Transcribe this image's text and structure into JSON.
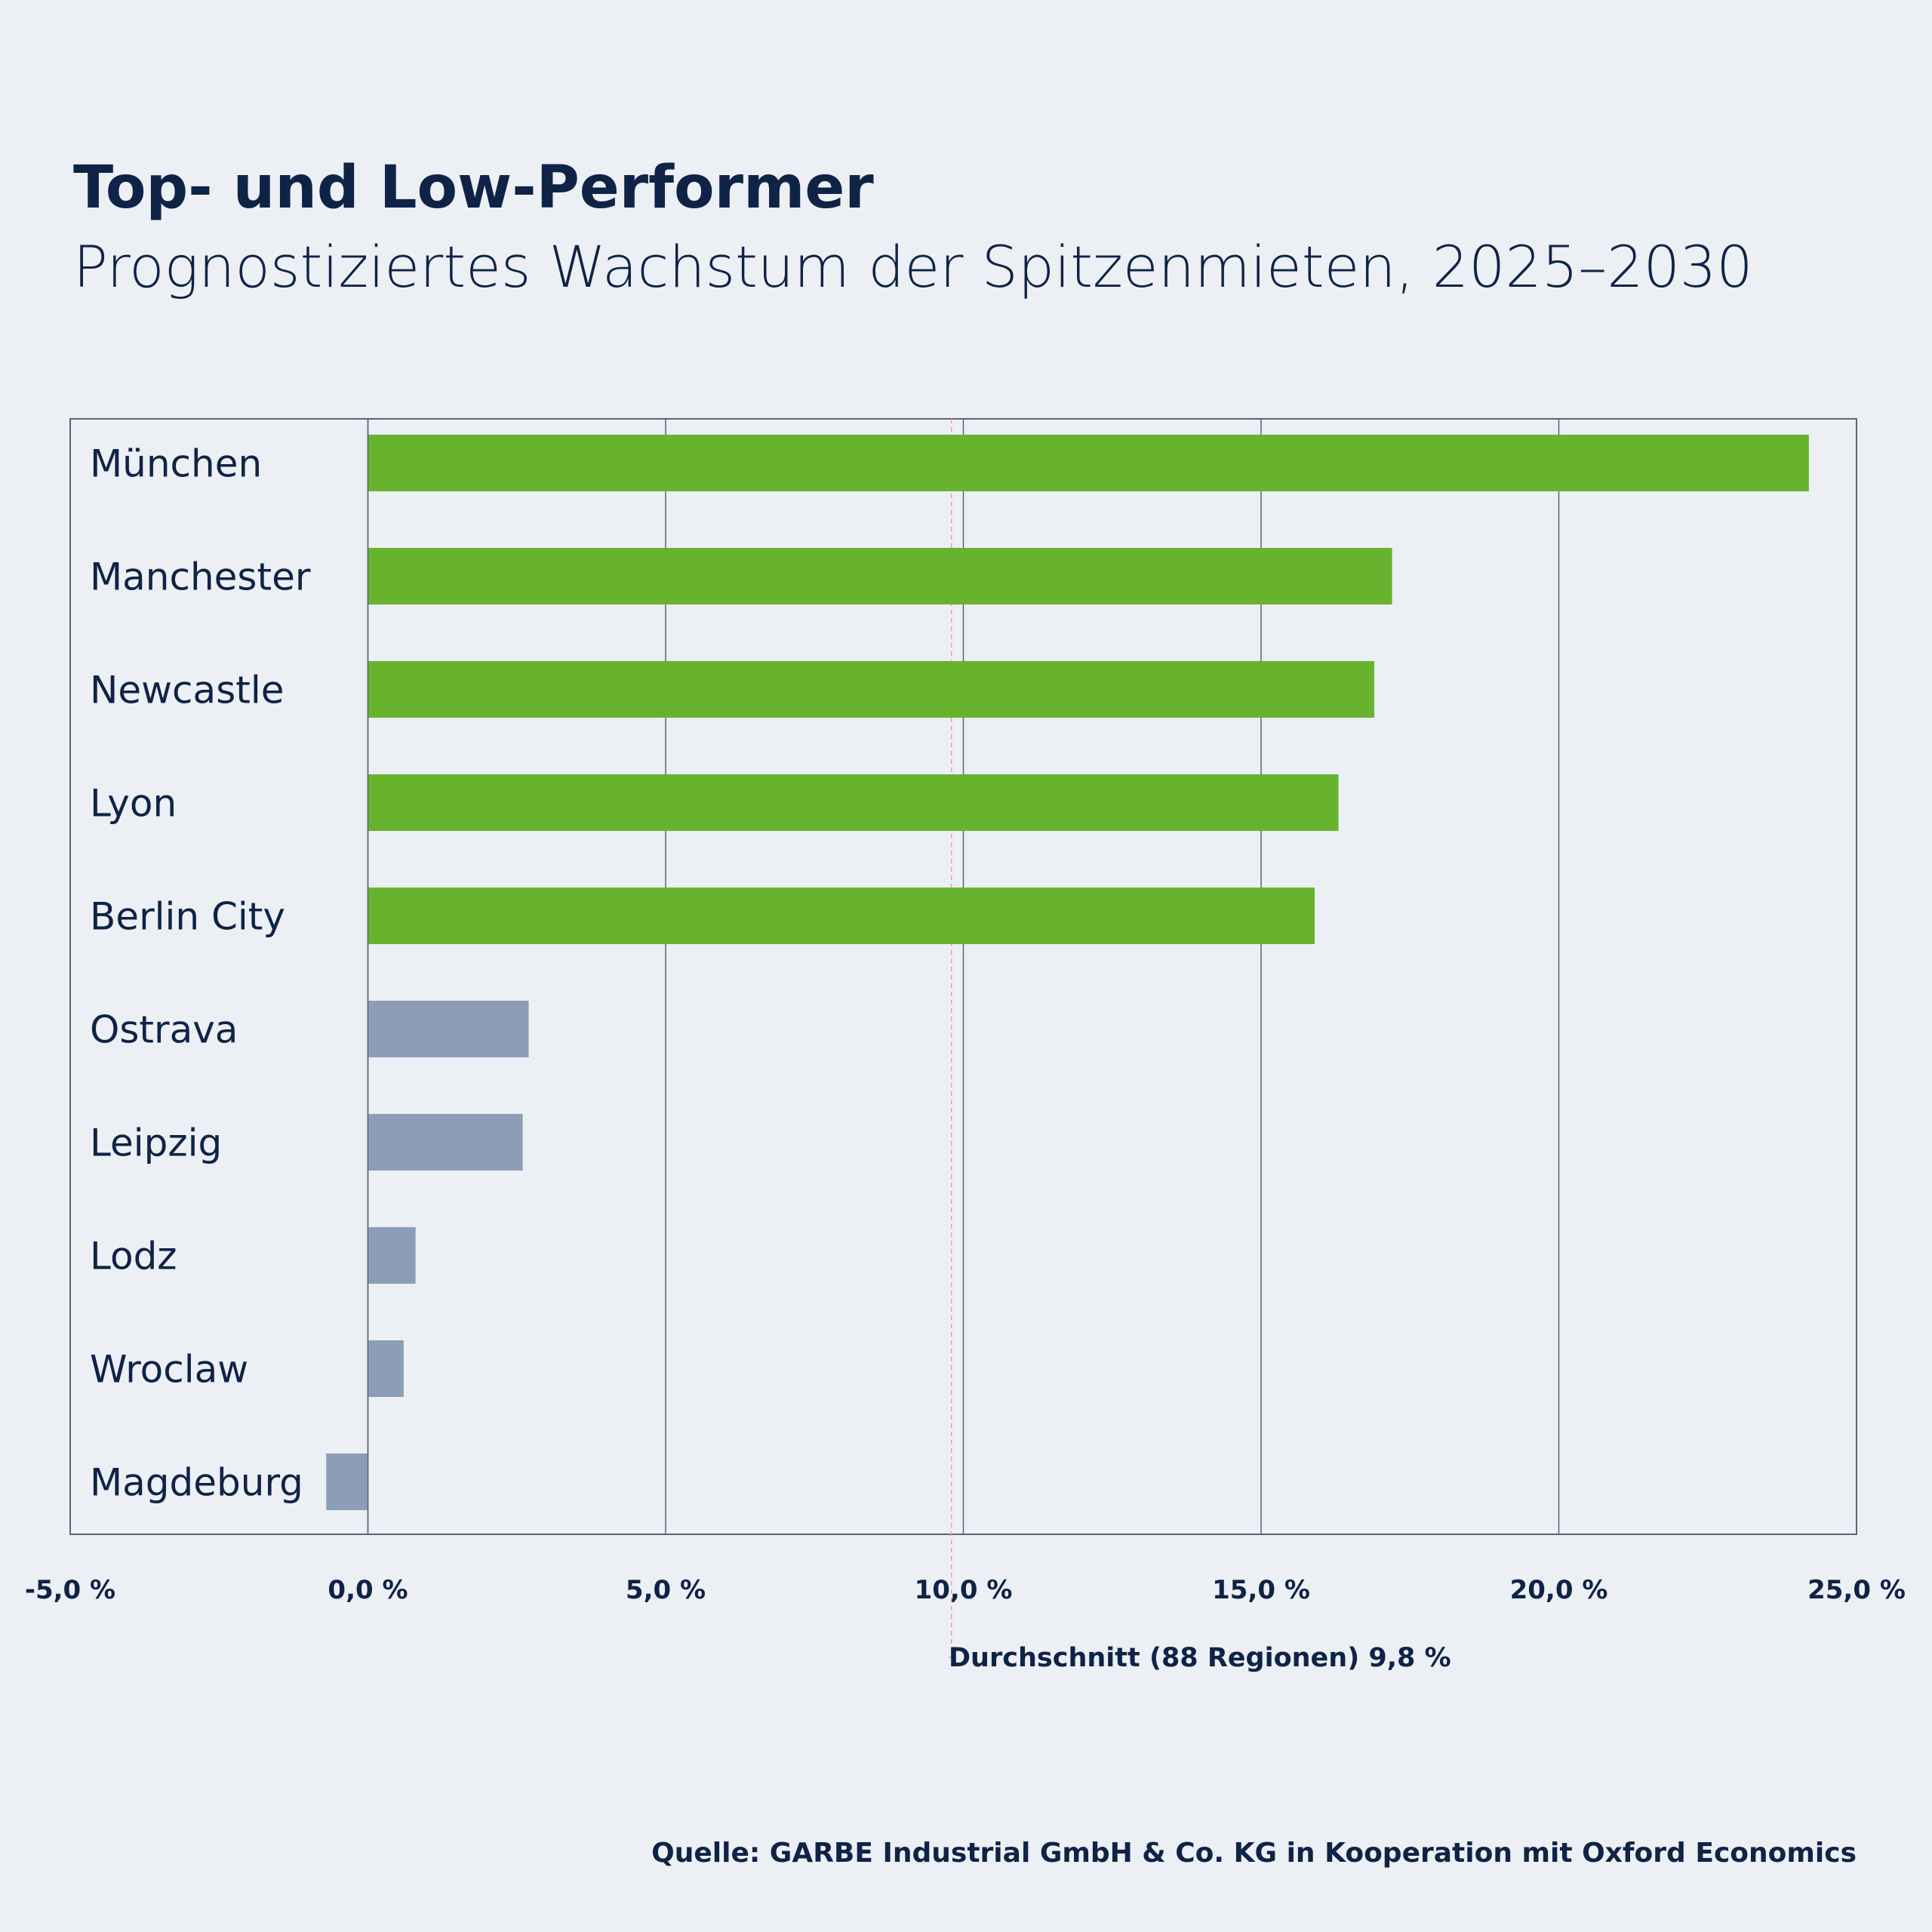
{
  "chart_data": {
    "type": "bar",
    "orientation": "horizontal",
    "title": "Top- und Low-Performer",
    "subtitle": "Prognostiziertes Wachstum der Spitzenmieten, 2025–2030",
    "categories": [
      "München",
      "Manchester",
      "Newcastle",
      "Lyon",
      "Berlin City",
      "Ostrava",
      "Leipzig",
      "Lodz",
      "Wroclaw",
      "Magdeburg"
    ],
    "values": [
      24.2,
      17.2,
      16.9,
      16.3,
      15.9,
      2.7,
      2.6,
      0.8,
      0.6,
      -0.7
    ],
    "groups": [
      "top",
      "top",
      "top",
      "top",
      "top",
      "low",
      "low",
      "low",
      "low",
      "low"
    ],
    "colors": {
      "top": "#67b32e",
      "low": "#8c9db7",
      "average_line": "#e8a0a8",
      "grid": "#5a6478"
    },
    "xlim": [
      -5,
      25
    ],
    "xticks": [
      -5,
      0,
      5,
      10,
      15,
      20,
      25
    ],
    "xtick_labels": [
      "-5,0 %",
      "0,0 %",
      "5,0 %",
      "10,0 %",
      "15,0 %",
      "20,0 %",
      "25,0 %"
    ],
    "grid": true,
    "average": {
      "value": 9.8,
      "label": "Durchschnitt (88 Regionen) 9,8 %"
    },
    "source": "Quelle: GARBE Industrial GmbH & Co. KG in Kooperation mit Oxford Economics"
  }
}
